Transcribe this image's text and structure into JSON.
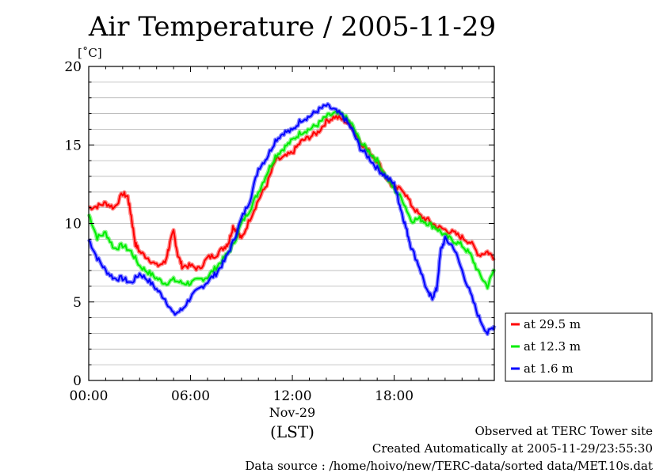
{
  "chart_data": {
    "type": "line",
    "title": "Air Temperature / 2005-11-29",
    "ylabel": "[˚C]",
    "xlabel": "(LST)",
    "date_label": "Nov-29",
    "x_ticks": [
      "00:00",
      "06:00",
      "12:00",
      "18:00"
    ],
    "y_ticks": [
      "0",
      "5",
      "10",
      "15",
      "20"
    ],
    "xlim_hours": [
      0,
      23.9
    ],
    "ylim": [
      0,
      20
    ],
    "grid": true,
    "legend_position": "right",
    "series": [
      {
        "name": "at 29.5 m",
        "color": "#ff0000",
        "x": [
          0,
          0.5,
          1,
          1.5,
          2,
          2.3,
          2.5,
          2.75,
          3,
          3.5,
          4,
          4.5,
          4.75,
          5,
          5.25,
          5.5,
          6,
          6.5,
          7,
          7.5,
          8,
          8.25,
          8.5,
          8.75,
          9,
          9.5,
          10,
          10.5,
          11,
          11.5,
          12,
          12.5,
          13,
          13.5,
          14,
          14.5,
          15,
          15.5,
          16,
          16.5,
          17,
          17.5,
          18,
          18.5,
          19,
          19.5,
          20,
          20.5,
          21,
          21.5,
          22,
          22.5,
          23,
          23.5,
          23.9
        ],
        "y": [
          11.0,
          11.1,
          11.3,
          11.0,
          11.9,
          11.7,
          10.5,
          8.7,
          8.2,
          7.8,
          7.3,
          7.5,
          8.6,
          9.5,
          8.0,
          7.3,
          7.3,
          7.1,
          7.8,
          8.0,
          8.5,
          8.8,
          9.8,
          9.5,
          9.0,
          10.3,
          11.5,
          12.5,
          14.0,
          14.2,
          14.5,
          15.2,
          15.5,
          15.8,
          16.5,
          16.8,
          16.6,
          16.2,
          15.2,
          14.6,
          14.0,
          13.0,
          12.2,
          12.2,
          11.2,
          10.5,
          10.2,
          9.8,
          9.6,
          9.4,
          9.1,
          8.8,
          8.0,
          8.2,
          7.8
        ]
      },
      {
        "name": "at 12.3 m",
        "color": "#00ee00",
        "x": [
          0,
          0.5,
          1,
          1.5,
          2,
          2.5,
          3,
          3.5,
          4,
          4.5,
          5,
          5.5,
          6,
          6.5,
          7,
          7.5,
          8,
          8.5,
          9,
          9.5,
          10,
          10.5,
          11,
          11.5,
          12,
          12.5,
          13,
          13.5,
          14,
          14.5,
          15,
          15.5,
          16,
          16.5,
          17,
          17.5,
          18,
          18.5,
          19,
          19.5,
          20,
          20.5,
          21,
          21.5,
          22,
          22.5,
          23,
          23.5,
          23.9
        ],
        "y": [
          10.6,
          9.1,
          9.4,
          8.4,
          8.6,
          8.2,
          7.3,
          6.9,
          6.5,
          6.2,
          6.4,
          6.2,
          6.2,
          6.4,
          6.6,
          7.2,
          7.8,
          8.6,
          10.0,
          10.9,
          12.0,
          13.2,
          14.3,
          14.8,
          15.3,
          15.8,
          16.0,
          16.3,
          16.8,
          17.0,
          16.9,
          16.3,
          15.2,
          14.6,
          14.0,
          13.0,
          12.2,
          11.5,
          10.2,
          10.3,
          10.0,
          9.7,
          9.2,
          8.9,
          8.6,
          8.0,
          6.8,
          6.0,
          7.1
        ]
      },
      {
        "name": "at 1.6 m",
        "color": "#0000ff",
        "x": [
          0,
          0.5,
          1,
          1.5,
          2,
          2.5,
          3,
          3.5,
          4,
          4.5,
          5,
          5.5,
          6,
          6.5,
          7,
          7.5,
          8,
          8.5,
          9,
          9.5,
          10,
          10.5,
          11,
          11.5,
          12,
          12.5,
          13,
          13.5,
          14,
          14.5,
          15,
          15.5,
          16,
          16.5,
          17,
          17.5,
          18,
          18.25,
          18.5,
          18.75,
          19,
          19.5,
          20,
          20.25,
          20.5,
          20.75,
          21,
          21.5,
          22,
          22.5,
          23,
          23.5,
          23.9
        ],
        "y": [
          9.0,
          7.8,
          7.0,
          6.5,
          6.5,
          6.2,
          6.8,
          6.4,
          5.8,
          5.2,
          4.2,
          4.5,
          5.3,
          5.8,
          6.3,
          6.8,
          7.6,
          8.8,
          10.3,
          11.5,
          13.5,
          14.2,
          15.3,
          15.8,
          15.9,
          16.6,
          16.8,
          17.2,
          17.5,
          17.2,
          16.8,
          16.0,
          14.8,
          14.2,
          13.5,
          13.0,
          12.5,
          11.5,
          10.5,
          9.5,
          8.5,
          7.2,
          5.5,
          5.3,
          5.8,
          8.3,
          9.0,
          8.5,
          7.0,
          5.5,
          4.0,
          3.0,
          3.5
        ]
      }
    ]
  },
  "footer": {
    "line1": "Observed at TERC Tower site",
    "line2": "Created Automatically at 2005-11-29/23:55:30",
    "line3": "Data source : /home/hoivo/new/TERC-data/sorted  data/MET.10s.dat"
  }
}
